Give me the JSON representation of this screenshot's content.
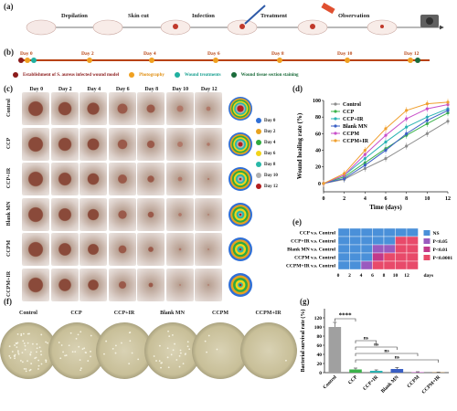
{
  "panel_a": {
    "label": "(a)",
    "steps": [
      "Depilation",
      "Skin cut",
      "Infection",
      "Treatment",
      "Observation"
    ]
  },
  "panel_b": {
    "label": "(b)",
    "days": [
      "Day 0",
      "Day 2",
      "Day 4",
      "Day 6",
      "Day 8",
      "Day 10",
      "Day 12"
    ],
    "legend": [
      {
        "text": "Establishment of S. aureus infected wound model",
        "color": "#8b1a1a"
      },
      {
        "text": "Photography",
        "color": "#f0a020"
      },
      {
        "text": "Wound treatments",
        "color": "#20b0a0"
      },
      {
        "text": "Wound tissue section staining",
        "color": "#1a6b3a"
      }
    ]
  },
  "panel_c": {
    "label": "(c)",
    "days": [
      "Day 0",
      "Day 2",
      "Day 4",
      "Day 6",
      "Day 8",
      "Day 10",
      "Day 12"
    ],
    "groups": [
      "Control",
      "CCP",
      "CCP+IR",
      "Blank MN",
      "CCPM",
      "CCPM+IR"
    ],
    "trace_legend": [
      {
        "text": "Day 0",
        "color": "#2f6fd6"
      },
      {
        "text": "Day 2",
        "color": "#e8a21f"
      },
      {
        "text": "Day 4",
        "color": "#2eaa3e"
      },
      {
        "text": "Day 6",
        "color": "#f2d31a"
      },
      {
        "text": "Day 8",
        "color": "#28b8a8"
      },
      {
        "text": "Day 10",
        "color": "#b0b0b0"
      },
      {
        "text": "Day 12",
        "color": "#b21e1e"
      }
    ]
  },
  "panel_d": {
    "label": "(d)",
    "chart_data": {
      "type": "line",
      "xlabel": "Time (days)",
      "ylabel": "Wound healing rate (%)",
      "x": [
        0,
        2,
        4,
        6,
        8,
        10,
        12
      ],
      "xlim": [
        0,
        12
      ],
      "ylim": [
        -10,
        100
      ],
      "yticks": [
        0,
        20,
        40,
        60,
        80,
        100
      ],
      "series": [
        {
          "name": "Control",
          "color": "#8c8c8c",
          "values": [
            0,
            5,
            18,
            30,
            45,
            60,
            75
          ]
        },
        {
          "name": "CCP",
          "color": "#3bb34a",
          "values": [
            0,
            8,
            25,
            42,
            58,
            72,
            85
          ]
        },
        {
          "name": "CCP+IR",
          "color": "#29b3b3",
          "values": [
            0,
            10,
            30,
            50,
            68,
            80,
            90
          ]
        },
        {
          "name": "Blank MN",
          "color": "#3a5fc4",
          "values": [
            0,
            6,
            22,
            40,
            60,
            76,
            88
          ]
        },
        {
          "name": "CCPM",
          "color": "#c94fc9",
          "values": [
            0,
            10,
            35,
            58,
            78,
            90,
            95
          ]
        },
        {
          "name": "CCPM+IR",
          "color": "#f0a030",
          "values": [
            0,
            12,
            40,
            66,
            88,
            96,
            98
          ]
        }
      ]
    }
  },
  "panel_e": {
    "label": "(e)",
    "rows": [
      "CCP v.s. Control",
      "CCP+IR v.s. Control",
      "Blank MN v.s. Control",
      "CCPM v.s. Control",
      "CCPM+IR v.s. Control"
    ],
    "cols": [
      "0",
      "2",
      "4",
      "6",
      "8",
      "10",
      "12"
    ],
    "x_suffix": "days",
    "legend": [
      {
        "text": "NS",
        "color": "#4a90d9"
      },
      {
        "text": "P<0.05",
        "color": "#9a5bbf"
      },
      {
        "text": "P<0.01",
        "color": "#c23a8a"
      },
      {
        "text": "P<0.0001",
        "color": "#e84a6a"
      }
    ],
    "matrix": [
      [
        0,
        0,
        0,
        0,
        0,
        0,
        0
      ],
      [
        0,
        0,
        0,
        0,
        0,
        3,
        3
      ],
      [
        0,
        0,
        0,
        1,
        1,
        3,
        3
      ],
      [
        0,
        0,
        0,
        2,
        3,
        3,
        3
      ],
      [
        0,
        0,
        1,
        3,
        3,
        3,
        3
      ]
    ]
  },
  "panel_f": {
    "label": "(f)",
    "groups": [
      "Control",
      "CCP",
      "CCP+IR",
      "Blank MN",
      "CCPM",
      "CCPM+IR"
    ]
  },
  "panel_g": {
    "label": "(g)",
    "chart_data": {
      "type": "bar",
      "ylabel": "Bacterial survival rate (%)",
      "categories": [
        "Control",
        "CCP",
        "CCP+IR",
        "Blank MN",
        "CCPM",
        "CCPM+IR"
      ],
      "values": [
        100,
        7,
        4,
        8,
        1,
        0.5
      ],
      "errors": [
        10,
        3,
        2,
        3,
        1,
        0.5
      ],
      "colors": [
        "#a0a0a0",
        "#3bb34a",
        "#29b3b3",
        "#3a5fc4",
        "#c94fc9",
        "#f0a030"
      ],
      "ylim": [
        0,
        140
      ],
      "yticks": [
        0,
        20,
        40,
        60,
        80,
        100,
        120
      ],
      "annotations": [
        "****",
        "ns",
        "ns",
        "ns",
        "ns"
      ]
    }
  }
}
